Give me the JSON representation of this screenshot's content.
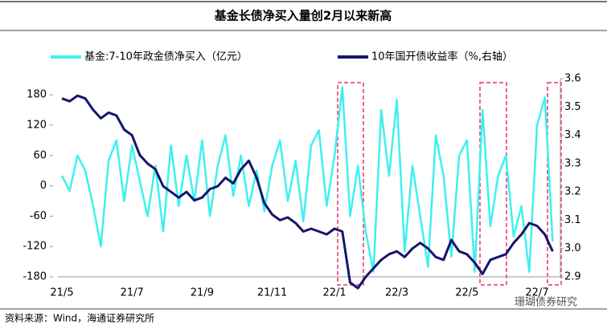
{
  "chart_data": {
    "type": "line",
    "title": "基金长债净买入量创2月以来新高",
    "source": "资料来源：Wind，海通证券研究所",
    "watermark": "珊瑚债券研究",
    "categories": [
      "21/5",
      null,
      null,
      null,
      null,
      null,
      null,
      null,
      null,
      "21/7",
      null,
      null,
      null,
      null,
      null,
      null,
      null,
      null,
      "21/9",
      null,
      null,
      null,
      null,
      null,
      null,
      null,
      null,
      "21/11",
      null,
      null,
      null,
      null,
      null,
      null,
      null,
      "22/1",
      null,
      null,
      null,
      null,
      null,
      null,
      null,
      "22/3",
      null,
      null,
      null,
      null,
      null,
      null,
      null,
      null,
      "22/5",
      null,
      null,
      null,
      null,
      null,
      null,
      null,
      null,
      "22/7",
      null,
      null
    ],
    "series": [
      {
        "name": "基金:7-10年政金债净买入（亿元）",
        "color": "#3ff0f0",
        "axis": "y",
        "values": [
          20,
          -10,
          60,
          30,
          -40,
          -120,
          50,
          90,
          -30,
          80,
          10,
          -60,
          40,
          -90,
          80,
          -40,
          60,
          -30,
          90,
          -60,
          40,
          100,
          -20,
          60,
          -40,
          30,
          -50,
          40,
          90,
          -30,
          50,
          -70,
          80,
          110,
          -40,
          60,
          195,
          -60,
          40,
          -90,
          -170,
          150,
          20,
          170,
          -130,
          40,
          -60,
          -160,
          100,
          20,
          -140,
          60,
          90,
          -170,
          150,
          -80,
          20,
          60,
          -100,
          -40,
          -170,
          120,
          175,
          -110
        ]
      },
      {
        "name": "10年国开债收益率（%,右轴）",
        "color": "#15156e",
        "axis": "y2",
        "values": [
          3.53,
          3.52,
          3.54,
          3.53,
          3.49,
          3.46,
          3.48,
          3.47,
          3.42,
          3.4,
          3.33,
          3.3,
          3.28,
          3.22,
          3.2,
          3.18,
          3.2,
          3.17,
          3.18,
          3.21,
          3.22,
          3.25,
          3.23,
          3.28,
          3.31,
          3.25,
          3.16,
          3.12,
          3.1,
          3.11,
          3.09,
          3.06,
          3.07,
          3.06,
          3.05,
          3.07,
          3.06,
          2.88,
          2.86,
          2.9,
          2.93,
          2.96,
          2.98,
          2.99,
          2.97,
          3.0,
          3.02,
          3.0,
          2.97,
          2.96,
          3.03,
          2.99,
          2.98,
          2.95,
          2.91,
          2.96,
          2.97,
          2.98,
          3.02,
          3.05,
          3.09,
          3.08,
          3.05,
          2.99
        ]
      }
    ],
    "ylim": [
      -180,
      212
    ],
    "yticks": [
      -180,
      -120,
      -60,
      0,
      60,
      120,
      180
    ],
    "y2lim": [
      2.9,
      3.6
    ],
    "y2ticks": [
      2.9,
      {
        "value": 3,
        "label": "3.0"
      },
      3.1,
      3.2,
      3.3,
      3.4,
      3.5,
      3.6
    ],
    "grid": false
  }
}
